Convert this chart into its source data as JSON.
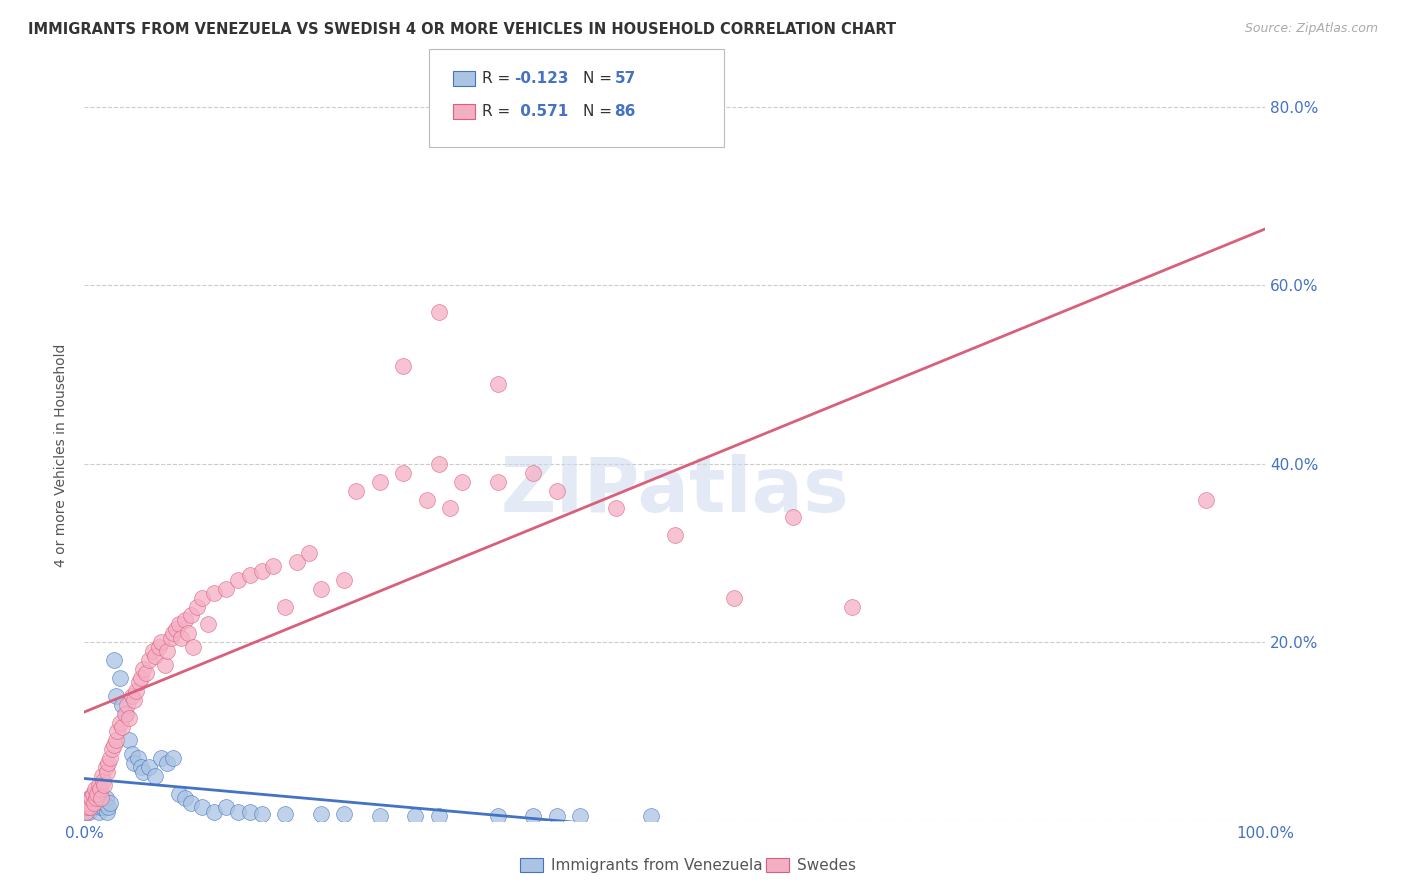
{
  "title": "IMMIGRANTS FROM VENEZUELA VS SWEDISH 4 OR MORE VEHICLES IN HOUSEHOLD CORRELATION CHART",
  "source": "Source: ZipAtlas.com",
  "ylabel": "4 or more Vehicles in Household",
  "xlim": [
    0.0,
    1.0
  ],
  "ylim": [
    0.0,
    0.82
  ],
  "xtick_positions": [
    0.0,
    0.2,
    0.4,
    0.6,
    0.8,
    1.0
  ],
  "xticklabels": [
    "0.0%",
    "",
    "",
    "",
    "",
    "100.0%"
  ],
  "ytick_positions": [
    0.0,
    0.2,
    0.4,
    0.6,
    0.8
  ],
  "yticklabels": [
    "",
    "20.0%",
    "40.0%",
    "60.0%",
    "80.0%"
  ],
  "legend_labels": [
    "Immigrants from Venezuela",
    "Swedes"
  ],
  "blue_color": "#aac4e2",
  "pink_color": "#f5afc5",
  "blue_line_color": "#4472c4",
  "pink_line_color": "#d9607a",
  "R_blue": -0.123,
  "N_blue": 57,
  "R_pink": 0.571,
  "N_pink": 86,
  "watermark": "ZIPatlas",
  "blue_scatter": [
    [
      0.001,
      0.01
    ],
    [
      0.002,
      0.02
    ],
    [
      0.003,
      0.015
    ],
    [
      0.004,
      0.01
    ],
    [
      0.005,
      0.025
    ],
    [
      0.006,
      0.02
    ],
    [
      0.007,
      0.015
    ],
    [
      0.008,
      0.03
    ],
    [
      0.009,
      0.02
    ],
    [
      0.01,
      0.025
    ],
    [
      0.011,
      0.02
    ],
    [
      0.012,
      0.01
    ],
    [
      0.013,
      0.015
    ],
    [
      0.014,
      0.02
    ],
    [
      0.015,
      0.025
    ],
    [
      0.016,
      0.015
    ],
    [
      0.017,
      0.02
    ],
    [
      0.018,
      0.025
    ],
    [
      0.019,
      0.01
    ],
    [
      0.02,
      0.015
    ],
    [
      0.022,
      0.02
    ],
    [
      0.025,
      0.18
    ],
    [
      0.027,
      0.14
    ],
    [
      0.03,
      0.16
    ],
    [
      0.032,
      0.13
    ],
    [
      0.035,
      0.12
    ],
    [
      0.038,
      0.09
    ],
    [
      0.04,
      0.075
    ],
    [
      0.042,
      0.065
    ],
    [
      0.045,
      0.07
    ],
    [
      0.048,
      0.06
    ],
    [
      0.05,
      0.055
    ],
    [
      0.055,
      0.06
    ],
    [
      0.06,
      0.05
    ],
    [
      0.065,
      0.07
    ],
    [
      0.07,
      0.065
    ],
    [
      0.075,
      0.07
    ],
    [
      0.08,
      0.03
    ],
    [
      0.085,
      0.025
    ],
    [
      0.09,
      0.02
    ],
    [
      0.1,
      0.015
    ],
    [
      0.11,
      0.01
    ],
    [
      0.12,
      0.015
    ],
    [
      0.13,
      0.01
    ],
    [
      0.14,
      0.01
    ],
    [
      0.15,
      0.008
    ],
    [
      0.17,
      0.008
    ],
    [
      0.2,
      0.008
    ],
    [
      0.22,
      0.008
    ],
    [
      0.25,
      0.005
    ],
    [
      0.28,
      0.005
    ],
    [
      0.3,
      0.005
    ],
    [
      0.35,
      0.005
    ],
    [
      0.38,
      0.005
    ],
    [
      0.4,
      0.005
    ],
    [
      0.42,
      0.005
    ],
    [
      0.48,
      0.005
    ]
  ],
  "pink_scatter": [
    [
      0.001,
      0.01
    ],
    [
      0.002,
      0.015
    ],
    [
      0.003,
      0.02
    ],
    [
      0.004,
      0.025
    ],
    [
      0.005,
      0.015
    ],
    [
      0.006,
      0.025
    ],
    [
      0.007,
      0.03
    ],
    [
      0.008,
      0.02
    ],
    [
      0.009,
      0.035
    ],
    [
      0.01,
      0.025
    ],
    [
      0.011,
      0.03
    ],
    [
      0.012,
      0.04
    ],
    [
      0.013,
      0.035
    ],
    [
      0.014,
      0.025
    ],
    [
      0.015,
      0.05
    ],
    [
      0.016,
      0.045
    ],
    [
      0.017,
      0.04
    ],
    [
      0.018,
      0.06
    ],
    [
      0.019,
      0.055
    ],
    [
      0.02,
      0.065
    ],
    [
      0.022,
      0.07
    ],
    [
      0.023,
      0.08
    ],
    [
      0.025,
      0.085
    ],
    [
      0.027,
      0.09
    ],
    [
      0.028,
      0.1
    ],
    [
      0.03,
      0.11
    ],
    [
      0.032,
      0.105
    ],
    [
      0.034,
      0.12
    ],
    [
      0.036,
      0.13
    ],
    [
      0.038,
      0.115
    ],
    [
      0.04,
      0.14
    ],
    [
      0.042,
      0.135
    ],
    [
      0.044,
      0.145
    ],
    [
      0.046,
      0.155
    ],
    [
      0.048,
      0.16
    ],
    [
      0.05,
      0.17
    ],
    [
      0.052,
      0.165
    ],
    [
      0.055,
      0.18
    ],
    [
      0.058,
      0.19
    ],
    [
      0.06,
      0.185
    ],
    [
      0.063,
      0.195
    ],
    [
      0.065,
      0.2
    ],
    [
      0.068,
      0.175
    ],
    [
      0.07,
      0.19
    ],
    [
      0.073,
      0.205
    ],
    [
      0.075,
      0.21
    ],
    [
      0.078,
      0.215
    ],
    [
      0.08,
      0.22
    ],
    [
      0.082,
      0.205
    ],
    [
      0.085,
      0.225
    ],
    [
      0.088,
      0.21
    ],
    [
      0.09,
      0.23
    ],
    [
      0.092,
      0.195
    ],
    [
      0.095,
      0.24
    ],
    [
      0.1,
      0.25
    ],
    [
      0.105,
      0.22
    ],
    [
      0.11,
      0.255
    ],
    [
      0.12,
      0.26
    ],
    [
      0.13,
      0.27
    ],
    [
      0.14,
      0.275
    ],
    [
      0.15,
      0.28
    ],
    [
      0.16,
      0.285
    ],
    [
      0.17,
      0.24
    ],
    [
      0.18,
      0.29
    ],
    [
      0.19,
      0.3
    ],
    [
      0.2,
      0.26
    ],
    [
      0.22,
      0.27
    ],
    [
      0.23,
      0.37
    ],
    [
      0.25,
      0.38
    ],
    [
      0.27,
      0.39
    ],
    [
      0.29,
      0.36
    ],
    [
      0.3,
      0.4
    ],
    [
      0.31,
      0.35
    ],
    [
      0.32,
      0.38
    ],
    [
      0.35,
      0.38
    ],
    [
      0.38,
      0.39
    ],
    [
      0.4,
      0.37
    ],
    [
      0.45,
      0.35
    ],
    [
      0.5,
      0.32
    ],
    [
      0.55,
      0.25
    ],
    [
      0.6,
      0.34
    ],
    [
      0.65,
      0.24
    ],
    [
      0.95,
      0.36
    ],
    [
      0.3,
      0.57
    ],
    [
      0.27,
      0.51
    ],
    [
      0.35,
      0.49
    ]
  ]
}
